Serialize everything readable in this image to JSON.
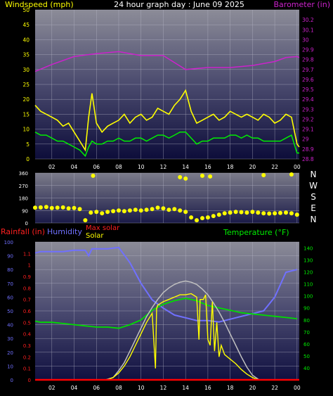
{
  "chart_data": [
    {
      "type": "line",
      "title": "24 hour graph day : June 09 2025",
      "ylabel": "Windspeed (mph)",
      "y2label": "Barometer (in)",
      "ylim": [
        0,
        50
      ],
      "y2lim": [
        28.8,
        30.3
      ],
      "xlim": [
        0.5,
        24.2
      ],
      "x_ticks": [
        "02",
        "04",
        "06",
        "08",
        "10",
        "12",
        "14",
        "16",
        "18",
        "20",
        "22",
        "00"
      ],
      "y_ticks": [
        0,
        5,
        10,
        15,
        20,
        25,
        30,
        35,
        40,
        45,
        50
      ],
      "y2_ticks": [
        28.8,
        28.9,
        29,
        29.1,
        29.2,
        29.3,
        29.4,
        29.5,
        29.6,
        29.7,
        29.8,
        29.9,
        30,
        30.1,
        30.2
      ],
      "grid": true,
      "series": [
        {
          "color": "#ffff00",
          "x": [
            0.5,
            1,
            1.5,
            2,
            2.5,
            3,
            3.5,
            4,
            4.5,
            5,
            5.3,
            5.6,
            6,
            6.5,
            7,
            7.5,
            8,
            8.5,
            9,
            9.5,
            10,
            10.5,
            11,
            11.5,
            12,
            12.5,
            13,
            13.5,
            14,
            14.5,
            15,
            15.5,
            16,
            16.5,
            17,
            17.5,
            18,
            18.5,
            19,
            19.5,
            20,
            20.5,
            21,
            21.5,
            22,
            22.5,
            23,
            23.5,
            24,
            24.2
          ],
          "y": [
            18,
            16,
            15,
            14,
            13,
            11,
            12,
            9,
            6,
            3,
            14,
            22,
            12,
            9,
            11,
            12,
            13,
            15,
            12,
            14,
            15,
            13,
            14,
            17,
            16,
            15,
            18,
            20,
            23,
            16,
            12,
            13,
            14,
            15,
            13,
            14,
            16,
            15,
            14,
            15,
            14,
            13,
            15,
            14,
            12,
            13,
            15,
            14,
            5,
            4
          ]
        },
        {
          "color": "#00ee00",
          "x": [
            0.5,
            1,
            1.5,
            2,
            2.5,
            3,
            3.5,
            4,
            4.5,
            5,
            5.3,
            5.6,
            6,
            6.5,
            7,
            7.5,
            8,
            8.5,
            9,
            9.5,
            10,
            10.5,
            11,
            11.5,
            12,
            12.5,
            13,
            13.5,
            14,
            14.5,
            15,
            15.5,
            16,
            16.5,
            17,
            17.5,
            18,
            18.5,
            19,
            19.5,
            20,
            20.5,
            21,
            21.5,
            22,
            22.5,
            23,
            23.5,
            24,
            24.2
          ],
          "y": [
            9,
            8,
            8,
            7,
            6,
            6,
            5,
            4,
            3,
            1,
            4,
            6,
            5,
            5,
            6,
            6,
            7,
            6,
            6,
            7,
            7,
            6,
            7,
            8,
            8,
            7,
            8,
            9,
            9,
            7,
            5,
            6,
            6,
            7,
            7,
            7,
            8,
            8,
            7,
            8,
            7,
            7,
            6,
            6,
            6,
            6,
            7,
            8,
            2,
            2
          ]
        },
        {
          "color": "#cc22cc",
          "axis": "y2",
          "x": [
            0.5,
            2,
            4,
            6,
            8,
            10,
            12,
            14,
            16,
            18,
            20,
            22,
            23,
            24,
            24.2
          ],
          "y": [
            29.68,
            29.75,
            29.83,
            29.86,
            29.88,
            29.84,
            29.84,
            29.7,
            29.72,
            29.72,
            29.74,
            29.78,
            29.82,
            29.83,
            29.82
          ]
        }
      ]
    },
    {
      "type": "scatter",
      "ylim": [
        0,
        360
      ],
      "y_ticks": [
        0,
        90,
        180,
        270,
        360
      ],
      "compass_labels": [
        "N",
        "W",
        "S",
        "E",
        "N"
      ],
      "series": [
        {
          "color": "#ffff00",
          "x": [
            0.5,
            1,
            1.5,
            2,
            2.5,
            3,
            3.5,
            4,
            4.5,
            5,
            5.5,
            6,
            6.5,
            7,
            7.5,
            8,
            8.5,
            9,
            9.5,
            10,
            10.5,
            11,
            11.5,
            12,
            12.5,
            13,
            13.5,
            14,
            14.5,
            15,
            15.5,
            16,
            16.5,
            17,
            17.5,
            18,
            18.5,
            19,
            19.5,
            20,
            20.5,
            21,
            21.5,
            22,
            22.5,
            23,
            23.5,
            24,
            5.7,
            13.5,
            14,
            15.5,
            16.2,
            21,
            23.5
          ],
          "y": [
            110,
            112,
            115,
            108,
            110,
            112,
            105,
            108,
            100,
            20,
            75,
            80,
            70,
            80,
            85,
            90,
            85,
            90,
            95,
            90,
            95,
            100,
            110,
            105,
            95,
            100,
            90,
            80,
            40,
            20,
            35,
            40,
            50,
            60,
            70,
            75,
            80,
            78,
            75,
            80,
            75,
            70,
            68,
            70,
            72,
            75,
            70,
            60,
            340,
            330,
            320,
            340,
            335,
            345,
            350
          ]
        }
      ]
    },
    {
      "type": "line",
      "legend": [
        "Rainfall (in)",
        "Humidity",
        "Max solar",
        "Solar",
        "Temperature (°F)"
      ],
      "ylim_humidity": [
        0,
        100
      ],
      "ylim_rain": [
        0,
        1.2
      ],
      "ylim_temp": [
        30,
        145
      ],
      "y_ticks_humidity": [
        0,
        10,
        20,
        30,
        40,
        50,
        60,
        70,
        80,
        90,
        100
      ],
      "y_ticks_rain": [
        0,
        0.1,
        0.2,
        0.3,
        0.4,
        0.5,
        0.6,
        0.7,
        0.8,
        0.9,
        1,
        1.1
      ],
      "y_ticks_temp": [
        40,
        50,
        60,
        70,
        80,
        90,
        100,
        110,
        120,
        130,
        140
      ],
      "series": [
        {
          "name": "Humidity",
          "color": "#7070ff",
          "x": [
            0.5,
            1,
            2,
            3,
            4,
            5,
            5.3,
            5.6,
            6,
            7,
            8,
            9,
            10,
            11,
            12,
            13,
            14,
            15,
            16,
            17,
            18,
            19,
            20,
            21,
            22,
            23,
            24
          ],
          "y": [
            92,
            93,
            93,
            93,
            94,
            94,
            90,
            95,
            95,
            95,
            96,
            85,
            70,
            58,
            52,
            47,
            45,
            43,
            43,
            42,
            44,
            46,
            48,
            50,
            60,
            78,
            80
          ]
        },
        {
          "name": "Temperature (°F)",
          "color": "#00dd00",
          "x": [
            0.5,
            1,
            2,
            3,
            4,
            5,
            6,
            7,
            8,
            9,
            10,
            11,
            12,
            13,
            14,
            15,
            16,
            17,
            18,
            19,
            20,
            21,
            22,
            23,
            24
          ],
          "y": [
            79,
            78,
            78,
            77,
            76,
            75,
            74,
            74,
            73,
            76,
            80,
            88,
            93,
            96,
            98,
            96,
            92,
            90,
            88,
            86,
            85,
            84,
            83,
            82,
            81
          ]
        },
        {
          "name": "Max solar",
          "color": "#c0c0c0",
          "x": [
            6.8,
            7.5,
            8,
            8.5,
            9,
            9.5,
            10,
            10.5,
            11,
            11.5,
            12,
            12.5,
            13,
            13.5,
            14,
            14.5,
            15,
            15.5,
            16,
            16.5,
            17,
            17.5,
            18,
            18.5,
            19,
            19.5,
            20,
            20.6
          ],
          "y": [
            0,
            0.02,
            0.08,
            0.15,
            0.25,
            0.35,
            0.45,
            0.55,
            0.63,
            0.7,
            0.76,
            0.8,
            0.83,
            0.85,
            0.86,
            0.85,
            0.83,
            0.79,
            0.74,
            0.67,
            0.59,
            0.5,
            0.4,
            0.3,
            0.2,
            0.11,
            0.04,
            0
          ]
        },
        {
          "name": "Solar",
          "color": "#ffff00",
          "x": [
            7,
            7.5,
            8,
            8.5,
            9,
            9.5,
            10,
            10.5,
            11,
            11.3,
            11.4,
            11.5,
            12,
            12.5,
            13,
            13.5,
            14,
            14.5,
            15,
            15.2,
            15.3,
            15.6,
            15.8,
            16,
            16.2,
            16.4,
            16.6,
            16.8,
            17,
            17.2,
            17.5,
            18,
            18.5,
            19,
            19.5,
            20,
            20.5
          ],
          "y": [
            0,
            0.02,
            0.06,
            0.12,
            0.2,
            0.3,
            0.4,
            0.5,
            0.58,
            0.1,
            0.62,
            0.65,
            0.68,
            0.7,
            0.72,
            0.74,
            0.74,
            0.75,
            0.72,
            0.35,
            0.7,
            0.7,
            0.74,
            0.35,
            0.3,
            0.68,
            0.25,
            0.5,
            0.2,
            0.3,
            0.22,
            0.18,
            0.14,
            0.09,
            0.05,
            0.02,
            0
          ]
        },
        {
          "name": "Rainfall (in)",
          "color": "#ff0000",
          "x": [
            0.5,
            24.2
          ],
          "y": [
            0,
            0
          ]
        }
      ]
    }
  ]
}
